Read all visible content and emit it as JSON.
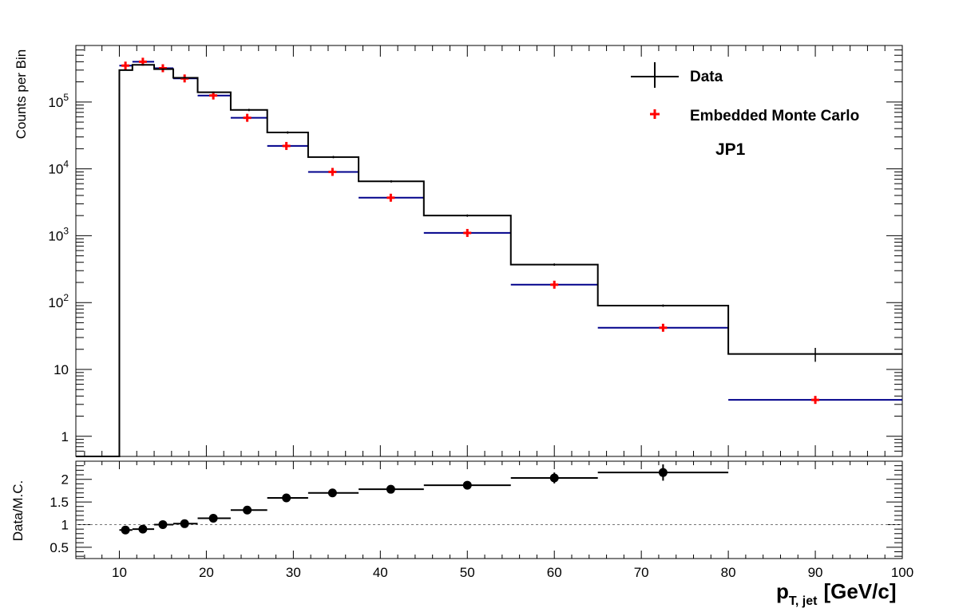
{
  "chart_data": [
    {
      "type": "histogram",
      "panel": "main",
      "ylabel": "Counts per Bin",
      "yscale": "log",
      "ylim": [
        0.5,
        700000
      ],
      "xlim": [
        5,
        100
      ],
      "y_tick_labels": [
        "1",
        "10",
        "10^2",
        "10^3",
        "10^4",
        "10^5"
      ],
      "annotation": "JP1",
      "legend_position": "top-right",
      "series": [
        {
          "name": "Data",
          "style": "black step histogram with error bars",
          "color": "#000000",
          "bins": [
            {
              "lo": 5,
              "hi": 10,
              "y": 0.5
            },
            {
              "lo": 10,
              "hi": 11.5,
              "y": 300000
            },
            {
              "lo": 11.5,
              "hi": 14,
              "y": 360000
            },
            {
              "lo": 14,
              "hi": 16.2,
              "y": 310000
            },
            {
              "lo": 16.2,
              "hi": 19,
              "y": 230000
            },
            {
              "lo": 19,
              "hi": 22.8,
              "y": 140000
            },
            {
              "lo": 22.8,
              "hi": 27,
              "y": 76000
            },
            {
              "lo": 27,
              "hi": 31.7,
              "y": 35000
            },
            {
              "lo": 31.7,
              "hi": 37.5,
              "y": 15000
            },
            {
              "lo": 37.5,
              "hi": 45,
              "y": 6500
            },
            {
              "lo": 45,
              "hi": 55,
              "y": 2000
            },
            {
              "lo": 55,
              "hi": 65,
              "y": 370
            },
            {
              "lo": 65,
              "hi": 80,
              "y": 90
            },
            {
              "lo": 80,
              "hi": 100,
              "y": 17,
              "err_lo": 13,
              "err_hi": 21
            }
          ]
        },
        {
          "name": "Embedded Monte Carlo",
          "style": "blue bin lines with red cross markers",
          "color": "#ff0000",
          "line_color": "#00008b",
          "bins": [
            {
              "lo": 10,
              "hi": 11.5,
              "x": 10.7,
              "y": 350000
            },
            {
              "lo": 11.5,
              "hi": 14,
              "x": 12.7,
              "y": 400000
            },
            {
              "lo": 14,
              "hi": 16.2,
              "x": 15.0,
              "y": 320000
            },
            {
              "lo": 16.2,
              "hi": 19,
              "x": 17.5,
              "y": 225000
            },
            {
              "lo": 19,
              "hi": 22.8,
              "x": 20.8,
              "y": 125000
            },
            {
              "lo": 22.8,
              "hi": 27,
              "x": 24.7,
              "y": 58000
            },
            {
              "lo": 27,
              "hi": 31.7,
              "x": 29.2,
              "y": 22000
            },
            {
              "lo": 31.7,
              "hi": 37.5,
              "x": 34.5,
              "y": 9000
            },
            {
              "lo": 37.5,
              "hi": 45,
              "x": 41.2,
              "y": 3700
            },
            {
              "lo": 45,
              "hi": 55,
              "x": 50.0,
              "y": 1100
            },
            {
              "lo": 55,
              "hi": 65,
              "x": 60.0,
              "y": 185
            },
            {
              "lo": 65,
              "hi": 80,
              "x": 72.5,
              "y": 42
            },
            {
              "lo": 80,
              "hi": 100,
              "x": 90.0,
              "y": 3.5
            }
          ]
        }
      ]
    },
    {
      "type": "scatter",
      "panel": "ratio",
      "ylabel": "Data/M.C.",
      "ylim": [
        0.25,
        2.4
      ],
      "xlim": [
        5,
        100
      ],
      "y_ticks": [
        0.5,
        1,
        1.5,
        2
      ],
      "y_tick_labels": [
        "0.5",
        "1",
        "1.5",
        "2"
      ],
      "reference_line": 1,
      "xlabel": "p",
      "xlabel_sub": "T, jet",
      "xlabel_unit": "[GeV/c]",
      "x_ticks": [
        10,
        20,
        30,
        40,
        50,
        60,
        70,
        80,
        90,
        100
      ],
      "x_tick_labels": [
        "10",
        "20",
        "30",
        "40",
        "50",
        "60",
        "70",
        "80",
        "90",
        "100"
      ],
      "series": [
        {
          "color": "#000000",
          "points": [
            {
              "x": 10.7,
              "lo": 10,
              "hi": 11.5,
              "y": 0.88,
              "err": 0.02
            },
            {
              "x": 12.7,
              "lo": 11.5,
              "hi": 14,
              "y": 0.9,
              "err": 0.02
            },
            {
              "x": 15.0,
              "lo": 14,
              "hi": 16.2,
              "y": 1.0,
              "err": 0.02
            },
            {
              "x": 17.5,
              "lo": 16.2,
              "hi": 19,
              "y": 1.02,
              "err": 0.02
            },
            {
              "x": 20.8,
              "lo": 19,
              "hi": 22.8,
              "y": 1.14,
              "err": 0.02
            },
            {
              "x": 24.7,
              "lo": 22.8,
              "hi": 27,
              "y": 1.32,
              "err": 0.02
            },
            {
              "x": 29.2,
              "lo": 27,
              "hi": 31.7,
              "y": 1.59,
              "err": 0.03
            },
            {
              "x": 34.5,
              "lo": 31.7,
              "hi": 37.5,
              "y": 1.7,
              "err": 0.03
            },
            {
              "x": 41.2,
              "lo": 37.5,
              "hi": 45,
              "y": 1.78,
              "err": 0.03
            },
            {
              "x": 50.0,
              "lo": 45,
              "hi": 55,
              "y": 1.87,
              "err": 0.05
            },
            {
              "x": 60.0,
              "lo": 55,
              "hi": 65,
              "y": 2.03,
              "err": 0.12
            },
            {
              "x": 72.5,
              "lo": 65,
              "hi": 80,
              "y": 2.15,
              "err": 0.18
            }
          ]
        }
      ]
    }
  ]
}
